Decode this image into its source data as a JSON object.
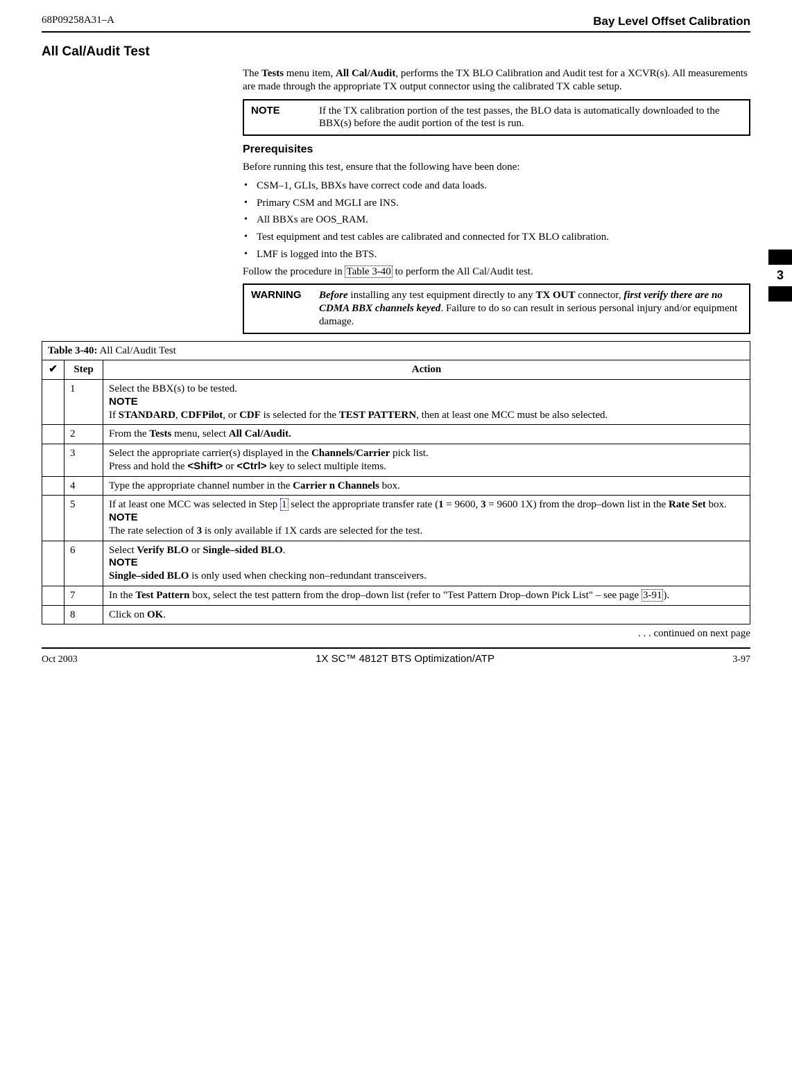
{
  "header": {
    "doc_id": "68P09258A31–A",
    "page_title": "Bay Level Offset Calibration"
  },
  "section_title": "All Cal/Audit Test",
  "intro": {
    "p1_a": "The ",
    "p1_b": "Tests",
    "p1_c": " menu item, ",
    "p1_d": "All Cal/Audit",
    "p1_e": ", performs the TX BLO Calibration and Audit test for a XCVR(s). All measurements are made through the appropriate TX output connector using the calibrated TX cable setup."
  },
  "note1": {
    "label": "NOTE",
    "body": "If the TX calibration portion of the test passes, the BLO data is automatically downloaded to the BBX(s) before the audit portion of the test is run."
  },
  "prereq": {
    "heading": "Prerequisites",
    "lead": "Before running this test, ensure that the following have been done:",
    "items": [
      "CSM–1, GLIs, BBXs have correct code and data loads.",
      "Primary CSM and MGLI are INS.",
      "All BBXs are OOS_RAM.",
      "Test equipment and test cables are calibrated and connected for TX BLO calibration.",
      "LMF is logged into the BTS."
    ],
    "tail_a": "Follow the procedure in ",
    "tail_link": "Table 3-40",
    "tail_b": " to perform the All Cal/Audit test."
  },
  "warning": {
    "label": "WARNING",
    "b1": "Before",
    "t1": " installing any test equipment directly to any ",
    "b2": "TX OUT",
    "t2": " connector, ",
    "b3": "first verify there are no CDMA BBX channels keyed",
    "t3": ". Failure to do so can result in serious personal injury and/or equipment damage."
  },
  "side_tab": "3",
  "table": {
    "title_a": "Table 3-40:",
    "title_b": " All Cal/Audit Test",
    "head_check": "✔",
    "head_step": "Step",
    "head_action": "Action",
    "rows": {
      "r1": {
        "step": "1",
        "a1": "Select the BBX(s) to be tested.",
        "note": "NOTE",
        "a2a": "If ",
        "a2b": "STANDARD",
        "a2c": ", ",
        "a2d": "CDFPilot",
        "a2e": ", or ",
        "a2f": "CDF",
        "a2g": " is selected for the ",
        "a2h": "TEST PATTERN",
        "a2i": ", then at least one MCC must be also selected."
      },
      "r2": {
        "step": "2",
        "a": "From the ",
        "b": "Tests",
        "c": " menu, select ",
        "d": "All Cal/Audit."
      },
      "r3": {
        "step": "3",
        "a": "Select the appropriate carrier(s) displayed in the ",
        "b": "Channels/Carrier",
        "c": " pick list.",
        "d": "Press and hold the ",
        "e": "<Shift>",
        "f": " or ",
        "g": "<Ctrl>",
        "h": " key to select multiple items."
      },
      "r4": {
        "step": "4",
        "a": "Type the appropriate channel number in the ",
        "b": "Carrier n Channels",
        "c": " box."
      },
      "r5": {
        "step": "5",
        "a": "If at least one MCC was selected in Step ",
        "link": "1",
        "b": " select the appropriate transfer rate (",
        "c": "1",
        "d": " = 9600, ",
        "e": "3",
        "f": " = 9600 1X) from the drop–down list in the ",
        "g": "Rate Set",
        "h": " box.",
        "note": "NOTE",
        "n1": "The rate selection of ",
        "n2": "3",
        "n3": " is only available if 1X cards are selected for the test."
      },
      "r6": {
        "step": "6",
        "a": "Select ",
        "b": "Verify BLO",
        "c": " or ",
        "d": "Single–sided BLO",
        "e": ".",
        "note": "NOTE",
        "n1": "Single–sided BLO",
        "n2": " is only used when checking non–redundant transceivers."
      },
      "r7": {
        "step": "7",
        "a": "In the ",
        "b": "Test Pattern",
        "c": " box, select the test pattern from the drop–down list (refer to \"Test Pattern Drop–down Pick List\" – see page ",
        "link": "3-91",
        "d": ")."
      },
      "r8": {
        "step": "8",
        "a": "Click on ",
        "b": "OK",
        "c": "."
      }
    },
    "continued": ". . . continued on next page"
  },
  "footer": {
    "left": "Oct 2003",
    "center": "1X SC™ 4812T BTS Optimization/ATP",
    "right": "3-97"
  }
}
